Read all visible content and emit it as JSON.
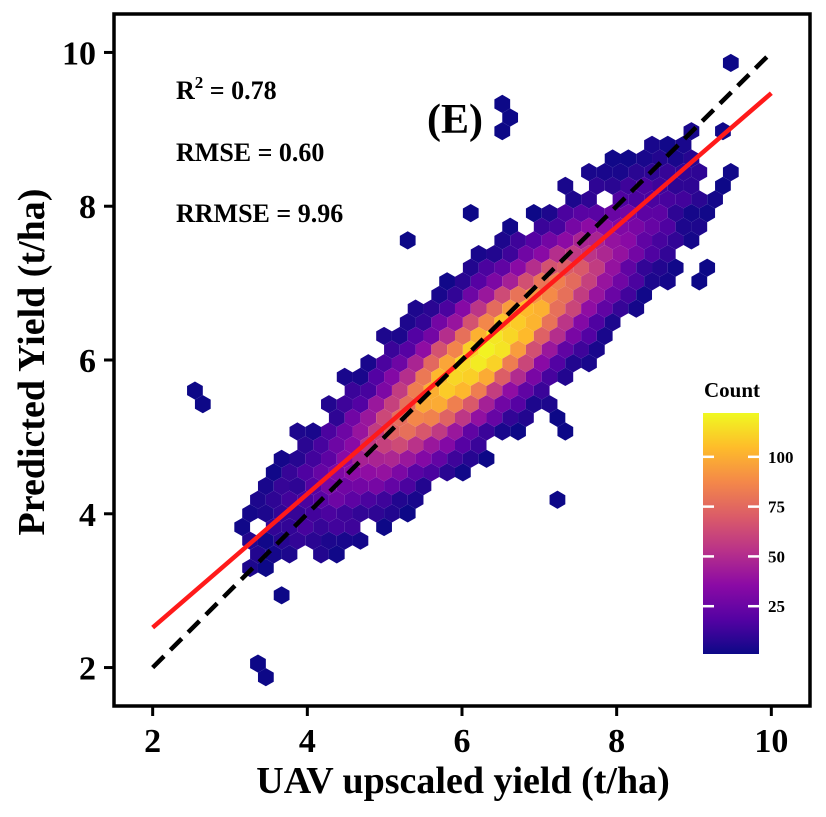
{
  "chart_data": {
    "type": "heatmap",
    "subtype": "hexbin",
    "panel_label": "(E)",
    "xlabel": "UAV upscaled yield (t/ha)",
    "ylabel": "Predicted Yield (t/ha)",
    "xlim": [
      1.5,
      10.5
    ],
    "ylim": [
      1.5,
      10.5
    ],
    "xticks": [
      2,
      4,
      6,
      8,
      10
    ],
    "yticks": [
      2,
      4,
      6,
      8,
      10
    ],
    "x_tick_labels": [
      "2",
      "4",
      "6",
      "8",
      "10"
    ],
    "y_tick_labels": [
      "2",
      "4",
      "6",
      "8",
      "10"
    ],
    "grid": false,
    "stats": {
      "r2_base": "R",
      "r2_sup": "2",
      "r2_value": " = 0.78",
      "rmse": "RMSE = 0.60",
      "rrmse": "RRMSE = 9.96"
    },
    "identity_line": {
      "x": [
        2,
        10
      ],
      "y": [
        2,
        10
      ],
      "style": "dashed",
      "color": "#000000"
    },
    "fit_line": {
      "x": [
        2,
        10
      ],
      "y": [
        2.52,
        9.47
      ],
      "color": "#ff1a1a"
    },
    "density_model": {
      "description": "approximate bivariate density of point counts",
      "center": [
        6.3,
        6.1
      ],
      "major_axis_slope": 0.9,
      "sd_along": 1.5,
      "sd_across": 0.38,
      "peak_count": 120
    },
    "colorbar": {
      "title": "Count",
      "ticks": [
        25,
        50,
        75,
        100
      ],
      "tick_labels": [
        "25",
        "50",
        "75",
        "100"
      ],
      "min": 1,
      "max": 122,
      "colors": [
        "#0d0887",
        "#5402a3",
        "#8b0aa5",
        "#b93289",
        "#db5c68",
        "#f48849",
        "#febc2a",
        "#f0f921"
      ]
    },
    "outlier_hexes": [
      [
        2.6,
        5.5
      ],
      [
        6.1,
        7.9
      ],
      [
        6.5,
        9.3
      ],
      [
        6.6,
        9.05
      ],
      [
        3.7,
        3.0
      ],
      [
        3.4,
        1.95
      ],
      [
        9.1,
        7.1
      ],
      [
        9.5,
        9.9
      ],
      [
        5.3,
        7.55
      ],
      [
        7.2,
        4.25
      ],
      [
        8.9,
        8.6
      ],
      [
        7.3,
        5.15
      ]
    ],
    "hole_hexes": [
      [
        3.75,
        4.95
      ],
      [
        8.55,
        9.25
      ],
      [
        4.95,
        2.85
      ],
      [
        7.85,
        8.15
      ],
      [
        8.8,
        8.95
      ],
      [
        5.1,
        3.35
      ]
    ]
  }
}
